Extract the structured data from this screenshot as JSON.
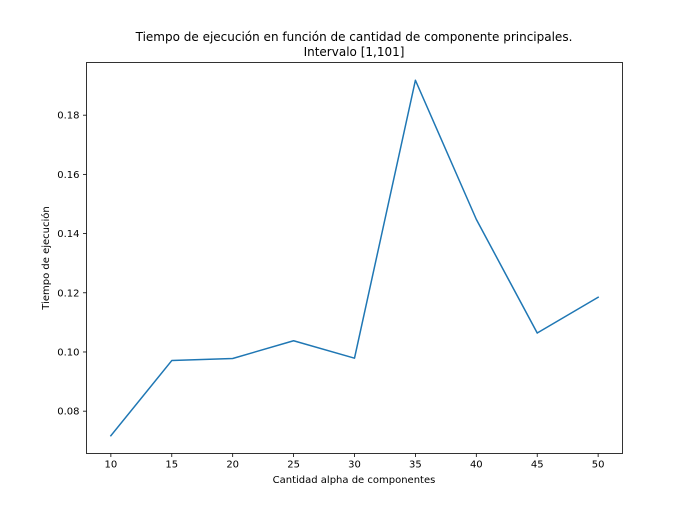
{
  "chart_data": {
    "type": "line",
    "title_line1": "Tiempo de ejecución en función de cantidad de componente principales.",
    "title_line2": "Intervalo [1,101]",
    "xlabel": "Cantidad alpha de componentes",
    "ylabel": "Tiempo de ejecución",
    "x": [
      10,
      15,
      20,
      25,
      30,
      35,
      40,
      45,
      50
    ],
    "series": [
      {
        "values": [
          0.0717,
          0.0971,
          0.0978,
          0.1038,
          0.0979,
          0.1918,
          0.1448,
          0.1064,
          0.1185
        ],
        "color": "#1f77b4"
      }
    ],
    "xticks": [
      10,
      15,
      20,
      25,
      30,
      35,
      40,
      45,
      50
    ],
    "yticks": [
      0.08,
      0.1,
      0.12,
      0.14,
      0.16,
      0.18
    ],
    "ytick_labels": [
      "0.08",
      "0.10",
      "0.12",
      "0.14",
      "0.16",
      "0.18"
    ],
    "xlim": [
      8,
      52
    ],
    "ylim": [
      0.0657,
      0.1978
    ],
    "grid": false,
    "legend": false
  }
}
